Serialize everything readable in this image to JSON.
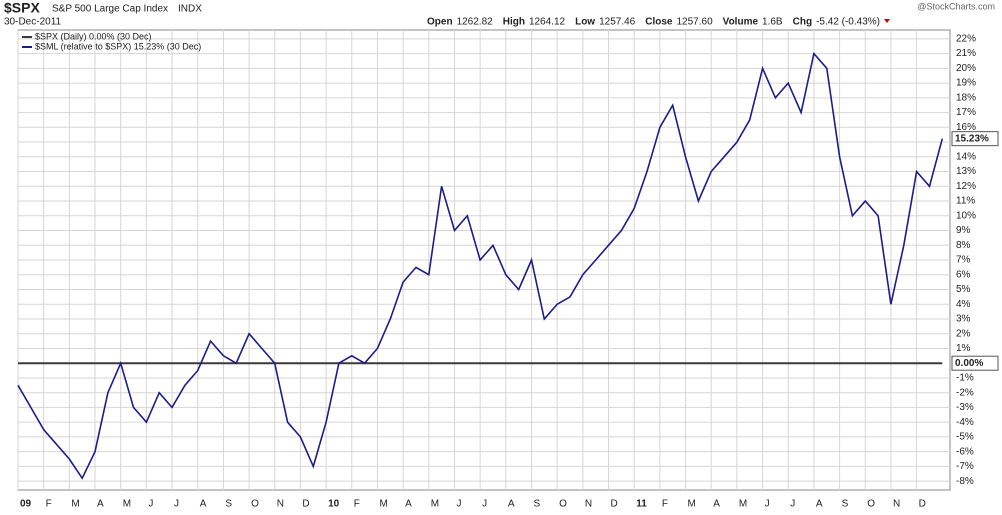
{
  "header": {
    "symbol": "$SPX",
    "name": "S&P 500 Large Cap Index",
    "exchange": "INDX",
    "date": "30-Dec-2011",
    "quote": [
      {
        "label": "Open",
        "value": "1262.82"
      },
      {
        "label": "High",
        "value": "1264.12"
      },
      {
        "label": "Low",
        "value": "1257.46"
      },
      {
        "label": "Close",
        "value": "1257.60"
      },
      {
        "label": "Volume",
        "value": "1.6B"
      },
      {
        "label": "Chg",
        "value": "-5.42 (-0.43%)"
      }
    ],
    "credit": "@StockCharts.com"
  },
  "chart_data": {
    "type": "line",
    "x": [
      0,
      0.5,
      1,
      1.5,
      2,
      2.5,
      3,
      3.5,
      4,
      4.5,
      5,
      5.5,
      6,
      6.5,
      7,
      7.5,
      8,
      8.5,
      9,
      9.5,
      10,
      10.5,
      11,
      11.5,
      12,
      12.5,
      13,
      13.5,
      14,
      14.5,
      15,
      15.5,
      16,
      16.5,
      17,
      17.5,
      18,
      18.5,
      19,
      19.5,
      20,
      20.5,
      21,
      21.5,
      22,
      22.5,
      23,
      23.5,
      24,
      24.5,
      25,
      25.5,
      26,
      26.5,
      27,
      27.5,
      28,
      28.5,
      29,
      29.5,
      30,
      30.5,
      31,
      31.5,
      32,
      32.5,
      33,
      33.5,
      34,
      34.5,
      35,
      35.5,
      36
    ],
    "series": [
      {
        "name": "$SPX (Daily) 0.00% (30 Dec)",
        "color": "#3a3a3a",
        "end_label": "0.00%",
        "values": [
          0,
          0,
          0,
          0,
          0,
          0,
          0,
          0,
          0,
          0,
          0,
          0,
          0,
          0,
          0,
          0,
          0,
          0,
          0,
          0,
          0,
          0,
          0,
          0,
          0,
          0,
          0,
          0,
          0,
          0,
          0,
          0,
          0,
          0,
          0,
          0,
          0,
          0,
          0,
          0,
          0,
          0,
          0,
          0,
          0,
          0,
          0,
          0,
          0,
          0,
          0,
          0,
          0,
          0,
          0,
          0,
          0,
          0,
          0,
          0,
          0,
          0,
          0,
          0,
          0,
          0,
          0,
          0,
          0,
          0,
          0,
          0,
          0
        ]
      },
      {
        "name": "$SML (relative to $SPX) 15.23% (30 Dec)",
        "color": "#1c1c8a",
        "end_label": "15.23%",
        "values": [
          -1.5,
          -3,
          -4.5,
          -5.5,
          -6.5,
          -7.8,
          -6,
          -2,
          0,
          -3,
          -4,
          -2,
          -3,
          -1.5,
          -0.5,
          1.5,
          0.5,
          0,
          2,
          1,
          0,
          -4,
          -5,
          -7,
          -4,
          0,
          0.5,
          0,
          1,
          3,
          5.5,
          6.5,
          6,
          12,
          9,
          10,
          7,
          8,
          6,
          5,
          7,
          3,
          4,
          4.5,
          6,
          7,
          8,
          9,
          10.5,
          13,
          16,
          17.5,
          14,
          11,
          13,
          14,
          15,
          16.5,
          20,
          18,
          19,
          17,
          21,
          20,
          14,
          10,
          11,
          10,
          4,
          8,
          13,
          12,
          15.23
        ]
      }
    ],
    "xlim": [
      0,
      36.3
    ],
    "xticks": [
      {
        "value": 0,
        "label": "09"
      },
      {
        "value": 1,
        "label": "F"
      },
      {
        "value": 2,
        "label": "M"
      },
      {
        "value": 3,
        "label": "A"
      },
      {
        "value": 4,
        "label": "M"
      },
      {
        "value": 5,
        "label": "J"
      },
      {
        "value": 6,
        "label": "J"
      },
      {
        "value": 7,
        "label": "A"
      },
      {
        "value": 8,
        "label": "S"
      },
      {
        "value": 9,
        "label": "O"
      },
      {
        "value": 10,
        "label": "N"
      },
      {
        "value": 11,
        "label": "D"
      },
      {
        "value": 12,
        "label": "10"
      },
      {
        "value": 13,
        "label": "F"
      },
      {
        "value": 14,
        "label": "M"
      },
      {
        "value": 15,
        "label": "A"
      },
      {
        "value": 16,
        "label": "M"
      },
      {
        "value": 17,
        "label": "J"
      },
      {
        "value": 18,
        "label": "J"
      },
      {
        "value": 19,
        "label": "A"
      },
      {
        "value": 20,
        "label": "S"
      },
      {
        "value": 21,
        "label": "O"
      },
      {
        "value": 22,
        "label": "N"
      },
      {
        "value": 23,
        "label": "D"
      },
      {
        "value": 24,
        "label": "11"
      },
      {
        "value": 25,
        "label": "F"
      },
      {
        "value": 26,
        "label": "M"
      },
      {
        "value": 27,
        "label": "A"
      },
      {
        "value": 28,
        "label": "M"
      },
      {
        "value": 29,
        "label": "J"
      },
      {
        "value": 30,
        "label": "J"
      },
      {
        "value": 31,
        "label": "A"
      },
      {
        "value": 32,
        "label": "S"
      },
      {
        "value": 33,
        "label": "O"
      },
      {
        "value": 34,
        "label": "N"
      },
      {
        "value": 35,
        "label": "D"
      }
    ],
    "ylim": [
      -8.6,
      22.6
    ],
    "yticks": [
      {
        "value": -8,
        "label": "-8%"
      },
      {
        "value": -7,
        "label": "-7%"
      },
      {
        "value": -6,
        "label": "-6%"
      },
      {
        "value": -5,
        "label": "-5%"
      },
      {
        "value": -4,
        "label": "-4%"
      },
      {
        "value": -3,
        "label": "-3%"
      },
      {
        "value": -2,
        "label": "-2%"
      },
      {
        "value": -1,
        "label": "-1%"
      },
      {
        "value": 1,
        "label": "1%"
      },
      {
        "value": 2,
        "label": "2%"
      },
      {
        "value": 3,
        "label": "3%"
      },
      {
        "value": 4,
        "label": "4%"
      },
      {
        "value": 5,
        "label": "5%"
      },
      {
        "value": 6,
        "label": "6%"
      },
      {
        "value": 7,
        "label": "7%"
      },
      {
        "value": 8,
        "label": "8%"
      },
      {
        "value": 9,
        "label": "9%"
      },
      {
        "value": 10,
        "label": "10%"
      },
      {
        "value": 11,
        "label": "11%"
      },
      {
        "value": 12,
        "label": "12%"
      },
      {
        "value": 13,
        "label": "13%"
      },
      {
        "value": 14,
        "label": "14%"
      },
      {
        "value": 15,
        "label": "15%"
      },
      {
        "value": 16,
        "label": "16%"
      },
      {
        "value": 17,
        "label": "17%"
      },
      {
        "value": 18,
        "label": "18%"
      },
      {
        "value": 19,
        "label": "19%"
      },
      {
        "value": 20,
        "label": "20%"
      },
      {
        "value": 21,
        "label": "21%"
      },
      {
        "value": 22,
        "label": "22%"
      }
    ],
    "grid": true
  }
}
